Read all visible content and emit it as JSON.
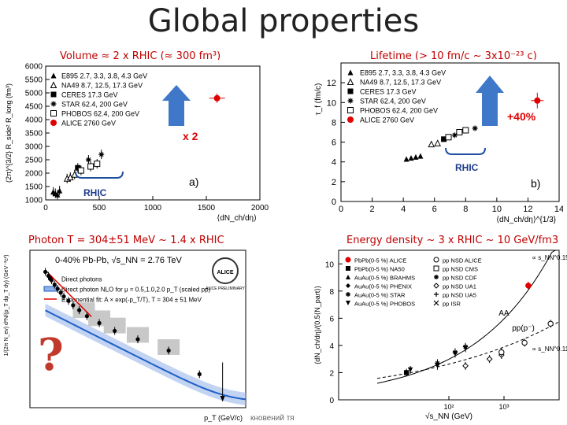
{
  "title": "Global properties",
  "captions": {
    "volume": "Volume ≈ 2 x RHIC (≈ 300 fm³)",
    "lifetime": "Lifetime (> 10 fm/c ~ 3x10⁻²³ c)",
    "photon": "Photon T = 304±51 MeV ~ 1.4 x RHIC",
    "energy": "Energy density ~ 3 x RHIC ~ 10 GeV/fm3"
  },
  "annotations": {
    "x2": "x 2",
    "rhic_a": "RHIC",
    "rhic_b": "RHIC",
    "plus40": "+40%",
    "question": "?",
    "footer_text": "кновений тя"
  },
  "colors": {
    "red": "#e00000",
    "blue": "#1f5fc9",
    "arrow": "#3f78c8",
    "caption": "#c00000"
  },
  "chart_data": [
    {
      "type": "scatter",
      "panel_label": "a)",
      "xlabel": "⟨dN_ch/dη⟩",
      "ylabel": "(2π)^{3/2} R_side² R_long (fm³)",
      "xlim": [
        0,
        2000
      ],
      "ylim": [
        1000,
        6000
      ],
      "xticks": [
        0,
        500,
        1000,
        1500,
        2000
      ],
      "yticks": [
        1000,
        1500,
        2000,
        2500,
        3000,
        3500,
        4000,
        4500,
        5000,
        5500,
        6000
      ],
      "legend": [
        {
          "marker": "triangle-filled",
          "label": "E895 2.7, 3.3, 3.8, 4.3 GeV"
        },
        {
          "marker": "triangle-open",
          "label": "NA49 8.7, 12.5, 17.3 GeV"
        },
        {
          "marker": "square-filled",
          "label": "CERES 17.3 GeV"
        },
        {
          "marker": "star",
          "label": "STAR 62.4, 200 GeV"
        },
        {
          "marker": "square-open",
          "label": "PHOBOS 62.4, 200 GeV"
        },
        {
          "marker": "circle-red",
          "label": "ALICE 2760 GeV"
        }
      ],
      "series": [
        {
          "marker": "triangle-filled",
          "x": [
            70,
            90,
            110,
            130
          ],
          "y": [
            1300,
            1250,
            1200,
            1350
          ]
        },
        {
          "marker": "triangle-open",
          "x": [
            200,
            230,
            270
          ],
          "y": [
            1800,
            1850,
            1950
          ]
        },
        {
          "marker": "square-filled",
          "x": [
            300
          ],
          "y": [
            2200
          ]
        },
        {
          "marker": "star",
          "x": [
            400,
            520
          ],
          "y": [
            2500,
            2700
          ]
        },
        {
          "marker": "square-open",
          "x": [
            330,
            420,
            480
          ],
          "y": [
            2100,
            2250,
            2350
          ]
        },
        {
          "marker": "circle-red",
          "x": [
            1600
          ],
          "y": [
            4800
          ]
        }
      ]
    },
    {
      "type": "scatter",
      "panel_label": "b)",
      "xlabel": "⟨dN_ch/dη⟩^{1/3}",
      "ylabel": "τ_f (fm/c)",
      "xlim": [
        0,
        14
      ],
      "ylim": [
        0,
        14
      ],
      "xticks": [
        0,
        2,
        4,
        6,
        8,
        10,
        12,
        14
      ],
      "yticks": [
        0,
        2,
        4,
        6,
        8,
        10,
        12
      ],
      "legend": [
        {
          "marker": "triangle-filled",
          "label": "E895 2.7, 3.3, 3.8, 4.3 GeV"
        },
        {
          "marker": "triangle-open",
          "label": "NA49 8.7, 12.5, 17.3 GeV"
        },
        {
          "marker": "square-filled",
          "label": "CERES 17.3 GeV"
        },
        {
          "marker": "star",
          "label": "STAR 62.4, 200 GeV"
        },
        {
          "marker": "square-open",
          "label": "PHOBOS 62.4, 200 GeV"
        },
        {
          "marker": "circle-red",
          "label": "ALICE 2760 GeV"
        }
      ],
      "series": [
        {
          "marker": "triangle-filled",
          "x": [
            4.2,
            4.5,
            4.8,
            5.1
          ],
          "y": [
            4.3,
            4.4,
            4.5,
            4.6
          ]
        },
        {
          "marker": "triangle-open",
          "x": [
            5.8,
            6.2
          ],
          "y": [
            5.8,
            5.9
          ]
        },
        {
          "marker": "square-filled",
          "x": [
            6.6
          ],
          "y": [
            6.3
          ]
        },
        {
          "marker": "star",
          "x": [
            7.3,
            8.6
          ],
          "y": [
            6.7,
            7.4
          ]
        },
        {
          "marker": "square-open",
          "x": [
            6.9,
            7.6,
            8.0
          ],
          "y": [
            6.5,
            7.0,
            7.2
          ]
        },
        {
          "marker": "circle-red",
          "x": [
            12.6
          ],
          "y": [
            10.2
          ]
        }
      ]
    },
    {
      "type": "scatter",
      "title": "0-40% Pb-Pb, √s_NN = 2.76 TeV",
      "badge": "ALICE PRELIMINARY",
      "xlabel": "p_T (GeV/c)",
      "ylabel": "1/(2π N_ev) d²N/(p_T dp_T dy) (GeV⁻²c²)",
      "log_y": true,
      "xlim": [
        0,
        14
      ],
      "ylim": [
        1e-05,
        1000
      ],
      "legend": [
        {
          "marker": "circle-black",
          "label": "Direct photons"
        },
        {
          "marker": "band-blue",
          "label": "Direct photon NLO for μ = 0.5,1.0,2.0 p_T (scaled pp)"
        },
        {
          "marker": "line-red",
          "label": "Exponential fit: A × exp(-p_T/T), T = 304 ± 51 MeV"
        }
      ],
      "series": [
        {
          "name": "Direct photons",
          "x": [
            1.0,
            1.2,
            1.4,
            1.6,
            1.8,
            2.0,
            2.2,
            2.5,
            2.8,
            3.2,
            3.7,
            4.5,
            5.5,
            7.0,
            9.0,
            11.0
          ],
          "y": [
            80,
            50,
            30,
            18,
            11,
            7,
            4.5,
            2.7,
            1.6,
            0.9,
            0.45,
            0.2,
            0.08,
            0.03,
            0.008,
            0.0005
          ]
        }
      ]
    },
    {
      "type": "scatter",
      "xlabel": "√s_NN (GeV)",
      "ylabel": "(dN_ch/dη)/(0.5⟨N_part⟩)",
      "log_x": true,
      "xlim": [
        1,
        10000
      ],
      "ylim": [
        0,
        11
      ],
      "yticks": [
        0,
        2,
        4,
        6,
        8,
        10
      ],
      "legend": [
        {
          "marker": "circle-red",
          "label": "PbPb(0-5 %) ALICE"
        },
        {
          "marker": "square-filled",
          "label": "PbPb(0-5 %) NA50"
        },
        {
          "marker": "triangle-filled",
          "label": "AuAu(0-5 %) BRAHMS"
        },
        {
          "marker": "diamond-filled",
          "label": "AuAu(0-5 %) PHENIX"
        },
        {
          "marker": "star",
          "label": "AuAu(0-5 %) STAR"
        },
        {
          "marker": "triangle-down",
          "label": "AuAu(0-5 %) PHOBOS"
        },
        {
          "marker": "circle-open",
          "label": "pp NSD ALICE"
        },
        {
          "marker": "square-open",
          "label": "pp NSD CMS"
        },
        {
          "marker": "star-open",
          "label": "pp NSD CDF"
        },
        {
          "marker": "diamond-open",
          "label": "pp NSD UA1"
        },
        {
          "marker": "plus",
          "label": "pp NSD UA5"
        },
        {
          "marker": "cross",
          "label": "pp ISR"
        }
      ],
      "curve_labels": [
        "AA",
        "pp(p⁻)",
        "∝ s_NN^0.15",
        "∝ s_NN^0.11"
      ],
      "series": [
        {
          "marker": "circle-red",
          "x": [
            2760
          ],
          "y": [
            8.4
          ]
        },
        {
          "marker": "square-filled",
          "x": [
            17
          ],
          "y": [
            2.0
          ]
        },
        {
          "marker": "triangle-down",
          "x": [
            20,
            62,
            130,
            200
          ],
          "y": [
            2.2,
            2.5,
            3.4,
            3.8
          ]
        },
        {
          "marker": "star",
          "x": [
            62,
            130,
            200
          ],
          "y": [
            2.7,
            3.5,
            3.9
          ]
        },
        {
          "marker": "diamond-open",
          "x": [
            200,
            546,
            900
          ],
          "y": [
            2.5,
            3.0,
            3.3
          ]
        },
        {
          "marker": "circle-open",
          "x": [
            900,
            2360,
            7000
          ],
          "y": [
            3.5,
            4.2,
            5.6
          ]
        }
      ]
    }
  ]
}
